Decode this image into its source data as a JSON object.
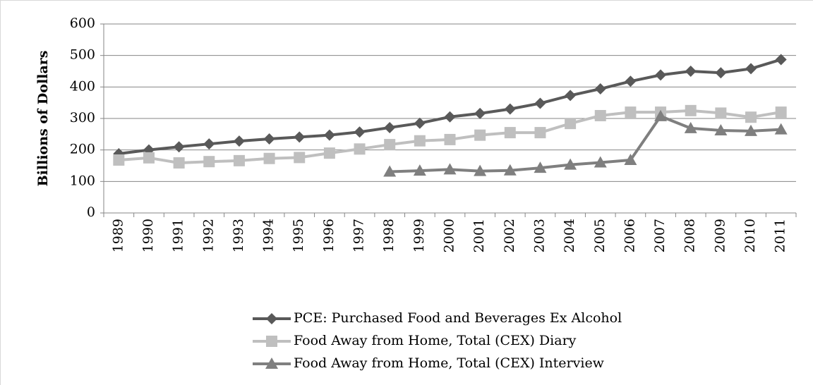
{
  "chart_data": {
    "type": "line",
    "y_label": "Billions of Dollars",
    "categories": [
      "1989",
      "1990",
      "1991",
      "1992",
      "1993",
      "1994",
      "1995",
      "1996",
      "1997",
      "1998",
      "1999",
      "2000",
      "2001",
      "2002",
      "2003",
      "2004",
      "2005",
      "2006",
      "2007",
      "2008",
      "2009",
      "2010",
      "2011"
    ],
    "series": [
      {
        "name": "PCE: Purchased Food and Beverages Ex Alcohol",
        "color": "#595959",
        "marker": "diamond",
        "values": [
          188,
          200,
          210,
          219,
          228,
          235,
          241,
          247,
          257,
          271,
          285,
          305,
          316,
          330,
          348,
          373,
          394,
          418,
          438,
          450,
          445,
          458,
          487
        ]
      },
      {
        "name": "Food Away from Home, Total (CEX) Diary",
        "color": "#bfbfbf",
        "marker": "square",
        "values": [
          168,
          175,
          159,
          163,
          166,
          173,
          176,
          190,
          203,
          217,
          229,
          233,
          247,
          255,
          255,
          284,
          309,
          320,
          320,
          325,
          317,
          304,
          320
        ]
      },
      {
        "name": "Food Away from Home, Total (CEX) Interview",
        "color": "#7f7f7f",
        "marker": "triangle",
        "values": [
          null,
          null,
          null,
          null,
          null,
          null,
          null,
          null,
          null,
          131,
          134,
          138,
          133,
          135,
          143,
          153,
          160,
          168,
          307,
          269,
          262,
          260,
          265
        ]
      }
    ],
    "ylim": [
      0,
      600
    ],
    "yticks": [
      0,
      100,
      200,
      300,
      400,
      500,
      600
    ],
    "grid": true
  }
}
